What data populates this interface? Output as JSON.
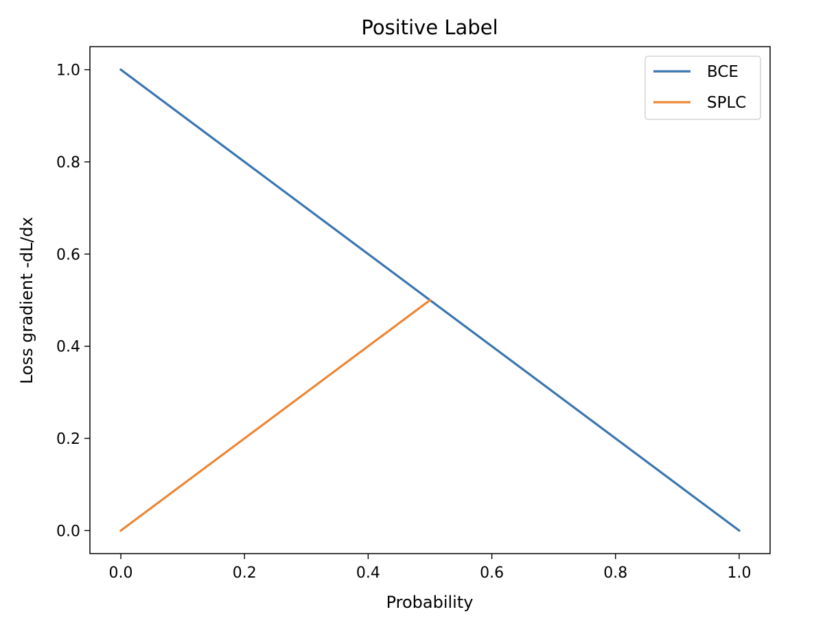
{
  "chart_data": {
    "type": "line",
    "title": "Positive Label",
    "xlabel": "Probability",
    "ylabel": "Loss gradient -dL/dx",
    "xlim": [
      -0.05,
      1.05
    ],
    "ylim": [
      -0.05,
      1.05
    ],
    "xticks": [
      0.0,
      0.2,
      0.4,
      0.6,
      0.8,
      1.0
    ],
    "xtick_labels": [
      "0.0",
      "0.2",
      "0.4",
      "0.6",
      "0.8",
      "1.0"
    ],
    "yticks": [
      0.0,
      0.2,
      0.4,
      0.6,
      0.8,
      1.0
    ],
    "ytick_labels": [
      "0.0",
      "0.2",
      "0.4",
      "0.6",
      "0.8",
      "1.0"
    ],
    "grid": false,
    "legend_position": "top-right",
    "series": [
      {
        "name": "BCE",
        "color": "#3a75b0",
        "x": [
          0.0,
          1.0
        ],
        "y": [
          1.0,
          0.0
        ]
      },
      {
        "name": "SPLC",
        "color": "#ef8636",
        "x": [
          0.0,
          0.5
        ],
        "y": [
          0.0,
          0.5
        ]
      }
    ]
  }
}
